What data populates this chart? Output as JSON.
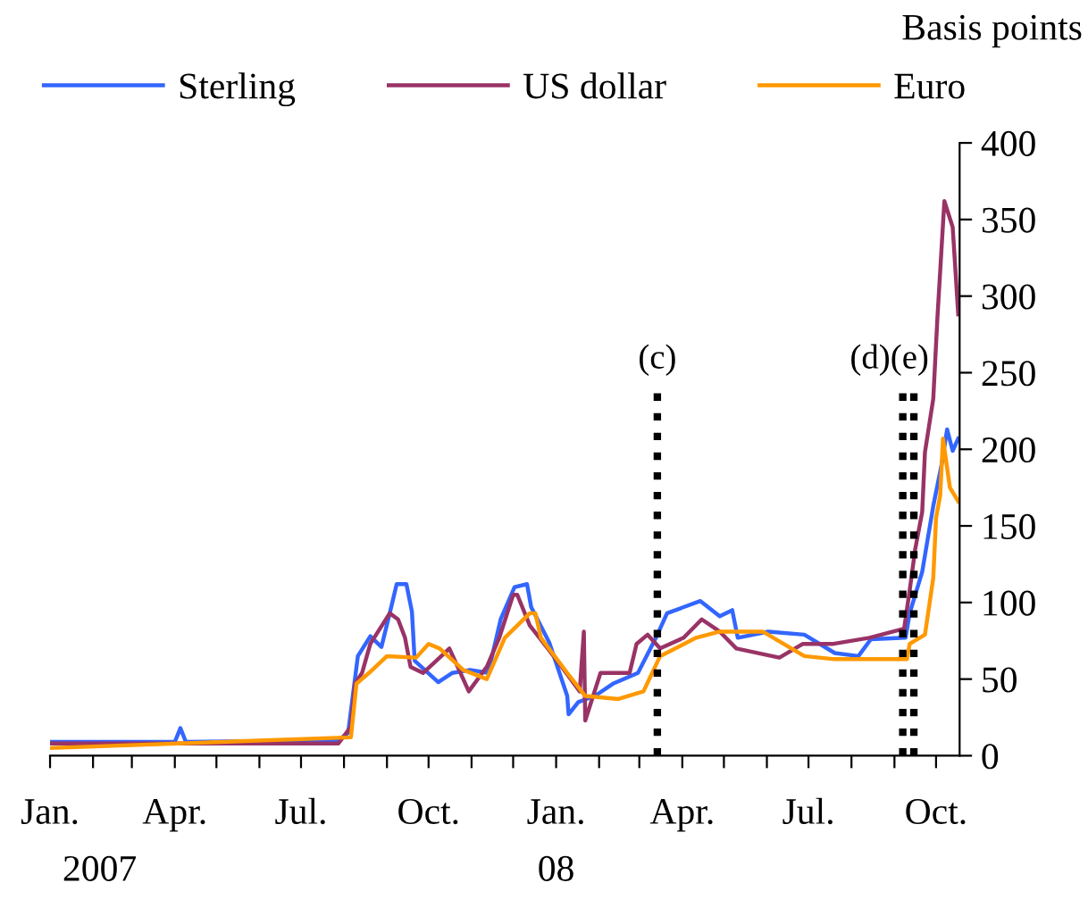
{
  "chart_data": {
    "type": "line",
    "ylabel": "Basis points",
    "xlim": [
      "2007-01-01",
      "2008-10-18"
    ],
    "ylim": [
      0,
      400
    ],
    "yticks": [
      0,
      50,
      100,
      150,
      200,
      250,
      300,
      350,
      400
    ],
    "xticks": [
      {
        "value": "2007-01-01",
        "label": "Jan."
      },
      {
        "value": "2007-02-01",
        "label": null
      },
      {
        "value": "2007-03-01",
        "label": null
      },
      {
        "value": "2007-04-01",
        "label": "Apr."
      },
      {
        "value": "2007-05-01",
        "label": null
      },
      {
        "value": "2007-06-01",
        "label": null
      },
      {
        "value": "2007-07-01",
        "label": "Jul."
      },
      {
        "value": "2007-08-01",
        "label": null
      },
      {
        "value": "2007-09-01",
        "label": null
      },
      {
        "value": "2007-10-01",
        "label": "Oct."
      },
      {
        "value": "2007-11-01",
        "label": null
      },
      {
        "value": "2007-12-01",
        "label": null
      },
      {
        "value": "2008-01-01",
        "label": "Jan."
      },
      {
        "value": "2008-02-01",
        "label": null
      },
      {
        "value": "2008-03-01",
        "label": null
      },
      {
        "value": "2008-04-01",
        "label": "Apr."
      },
      {
        "value": "2008-05-01",
        "label": null
      },
      {
        "value": "2008-06-01",
        "label": null
      },
      {
        "value": "2008-07-01",
        "label": "Jul."
      },
      {
        "value": "2008-08-01",
        "label": null
      },
      {
        "value": "2008-09-01",
        "label": null
      },
      {
        "value": "2008-10-01",
        "label": "Oct."
      }
    ],
    "annotations": [
      "2007",
      "08"
    ],
    "grid": false,
    "legend": "top",
    "line_style": "solid",
    "ref_lines": [
      {
        "axis": "x",
        "value": "2008-03-14",
        "label": "(c)",
        "color": "#000000",
        "line_style": "dotted"
      },
      {
        "axis": "x",
        "value": "2008-09-07",
        "label": "(d)",
        "color": "#000000",
        "line_style": "dotted"
      },
      {
        "axis": "x",
        "value": "2008-09-15",
        "label": "(e)",
        "color": "#000000",
        "line_style": "dotted"
      }
    ],
    "series": [
      {
        "name": "Sterling",
        "color": "#3366ff",
        "x": [
          "2007-01-01",
          "2007-04-01",
          "2007-04-05",
          "2007-04-09",
          "2007-07-28",
          "2007-08-04",
          "2007-08-11",
          "2007-08-20",
          "2007-08-28",
          "2007-09-03",
          "2007-09-08",
          "2007-09-15",
          "2007-09-19",
          "2007-09-21",
          "2007-10-08",
          "2007-10-18",
          "2007-10-31",
          "2007-11-13",
          "2007-11-22",
          "2007-12-02",
          "2007-12-11",
          "2007-12-14",
          "2007-12-27",
          "2008-01-09",
          "2008-01-10",
          "2008-01-17",
          "2008-01-29",
          "2008-02-11",
          "2008-02-29",
          "2008-03-13",
          "2008-03-21",
          "2008-04-14",
          "2008-04-28",
          "2008-05-07",
          "2008-05-11",
          "2008-06-02",
          "2008-06-28",
          "2008-07-20",
          "2008-08-06",
          "2008-08-15",
          "2008-09-09",
          "2008-09-12",
          "2008-09-21",
          "2008-09-29",
          "2008-10-05",
          "2008-10-09",
          "2008-10-13",
          "2008-10-17"
        ],
        "values": [
          9,
          9,
          18,
          9,
          10,
          15,
          65,
          78,
          71,
          93,
          112,
          112,
          94,
          62,
          48,
          54,
          56,
          54,
          89,
          110,
          112,
          97,
          74,
          39,
          27,
          35,
          39,
          47,
          54,
          77,
          93,
          101,
          91,
          95,
          77,
          81,
          79,
          67,
          65,
          76,
          77,
          93,
          120,
          163,
          190,
          213,
          199,
          207
        ]
      },
      {
        "name": "US dollar",
        "color": "#993366",
        "x": [
          "2007-01-01",
          "2007-07-28",
          "2007-08-06",
          "2007-08-09",
          "2007-08-14",
          "2007-08-20",
          "2007-09-03",
          "2007-09-09",
          "2007-09-14",
          "2007-09-18",
          "2007-09-27",
          "2007-10-09",
          "2007-10-16",
          "2007-10-22",
          "2007-10-30",
          "2007-11-12",
          "2007-11-21",
          "2007-12-01",
          "2007-12-04",
          "2007-12-13",
          "2007-12-26",
          "2008-01-05",
          "2008-01-18",
          "2008-01-21",
          "2008-01-22",
          "2008-02-02",
          "2008-02-23",
          "2008-02-28",
          "2008-03-07",
          "2008-03-16",
          "2008-04-02",
          "2008-04-15",
          "2008-04-28",
          "2008-05-10",
          "2008-06-10",
          "2008-06-27",
          "2008-07-19",
          "2008-08-14",
          "2008-09-08",
          "2008-09-12",
          "2008-09-16",
          "2008-09-21",
          "2008-09-23",
          "2008-09-29",
          "2008-10-02",
          "2008-10-07",
          "2008-10-13",
          "2008-10-17"
        ],
        "values": [
          8,
          8,
          19,
          47,
          54,
          73,
          93,
          89,
          77,
          58,
          54,
          64,
          70,
          58,
          42,
          58,
          77,
          105,
          105,
          85,
          70,
          58,
          42,
          81,
          23,
          54,
          54,
          73,
          79,
          70,
          77,
          89,
          81,
          70,
          64,
          73,
          73,
          77,
          83,
          108,
          135,
          159,
          198,
          233,
          286,
          362,
          345,
          288
        ]
      },
      {
        "name": "Euro",
        "color": "#ff9900",
        "x": [
          "2007-01-01",
          "2007-08-06",
          "2007-08-10",
          "2007-08-19",
          "2007-09-01",
          "2007-09-22",
          "2007-10-01",
          "2007-10-09",
          "2007-10-26",
          "2007-11-12",
          "2007-11-25",
          "2007-12-13",
          "2007-12-17",
          "2007-12-21",
          "2008-01-09",
          "2008-01-22",
          "2008-02-15",
          "2008-03-04",
          "2008-03-16",
          "2008-04-11",
          "2008-04-28",
          "2008-05-29",
          "2008-06-28",
          "2008-07-20",
          "2008-09-10",
          "2008-09-12",
          "2008-09-23",
          "2008-09-29",
          "2008-10-01",
          "2008-10-04",
          "2008-10-06",
          "2008-10-11",
          "2008-10-17"
        ],
        "values": [
          5,
          12,
          47,
          54,
          65,
          64,
          73,
          70,
          56,
          50,
          77,
          93,
          93,
          77,
          54,
          39,
          37,
          42,
          65,
          77,
          81,
          81,
          65,
          63,
          63,
          73,
          79,
          116,
          155,
          170,
          207,
          175,
          166
        ]
      }
    ]
  }
}
